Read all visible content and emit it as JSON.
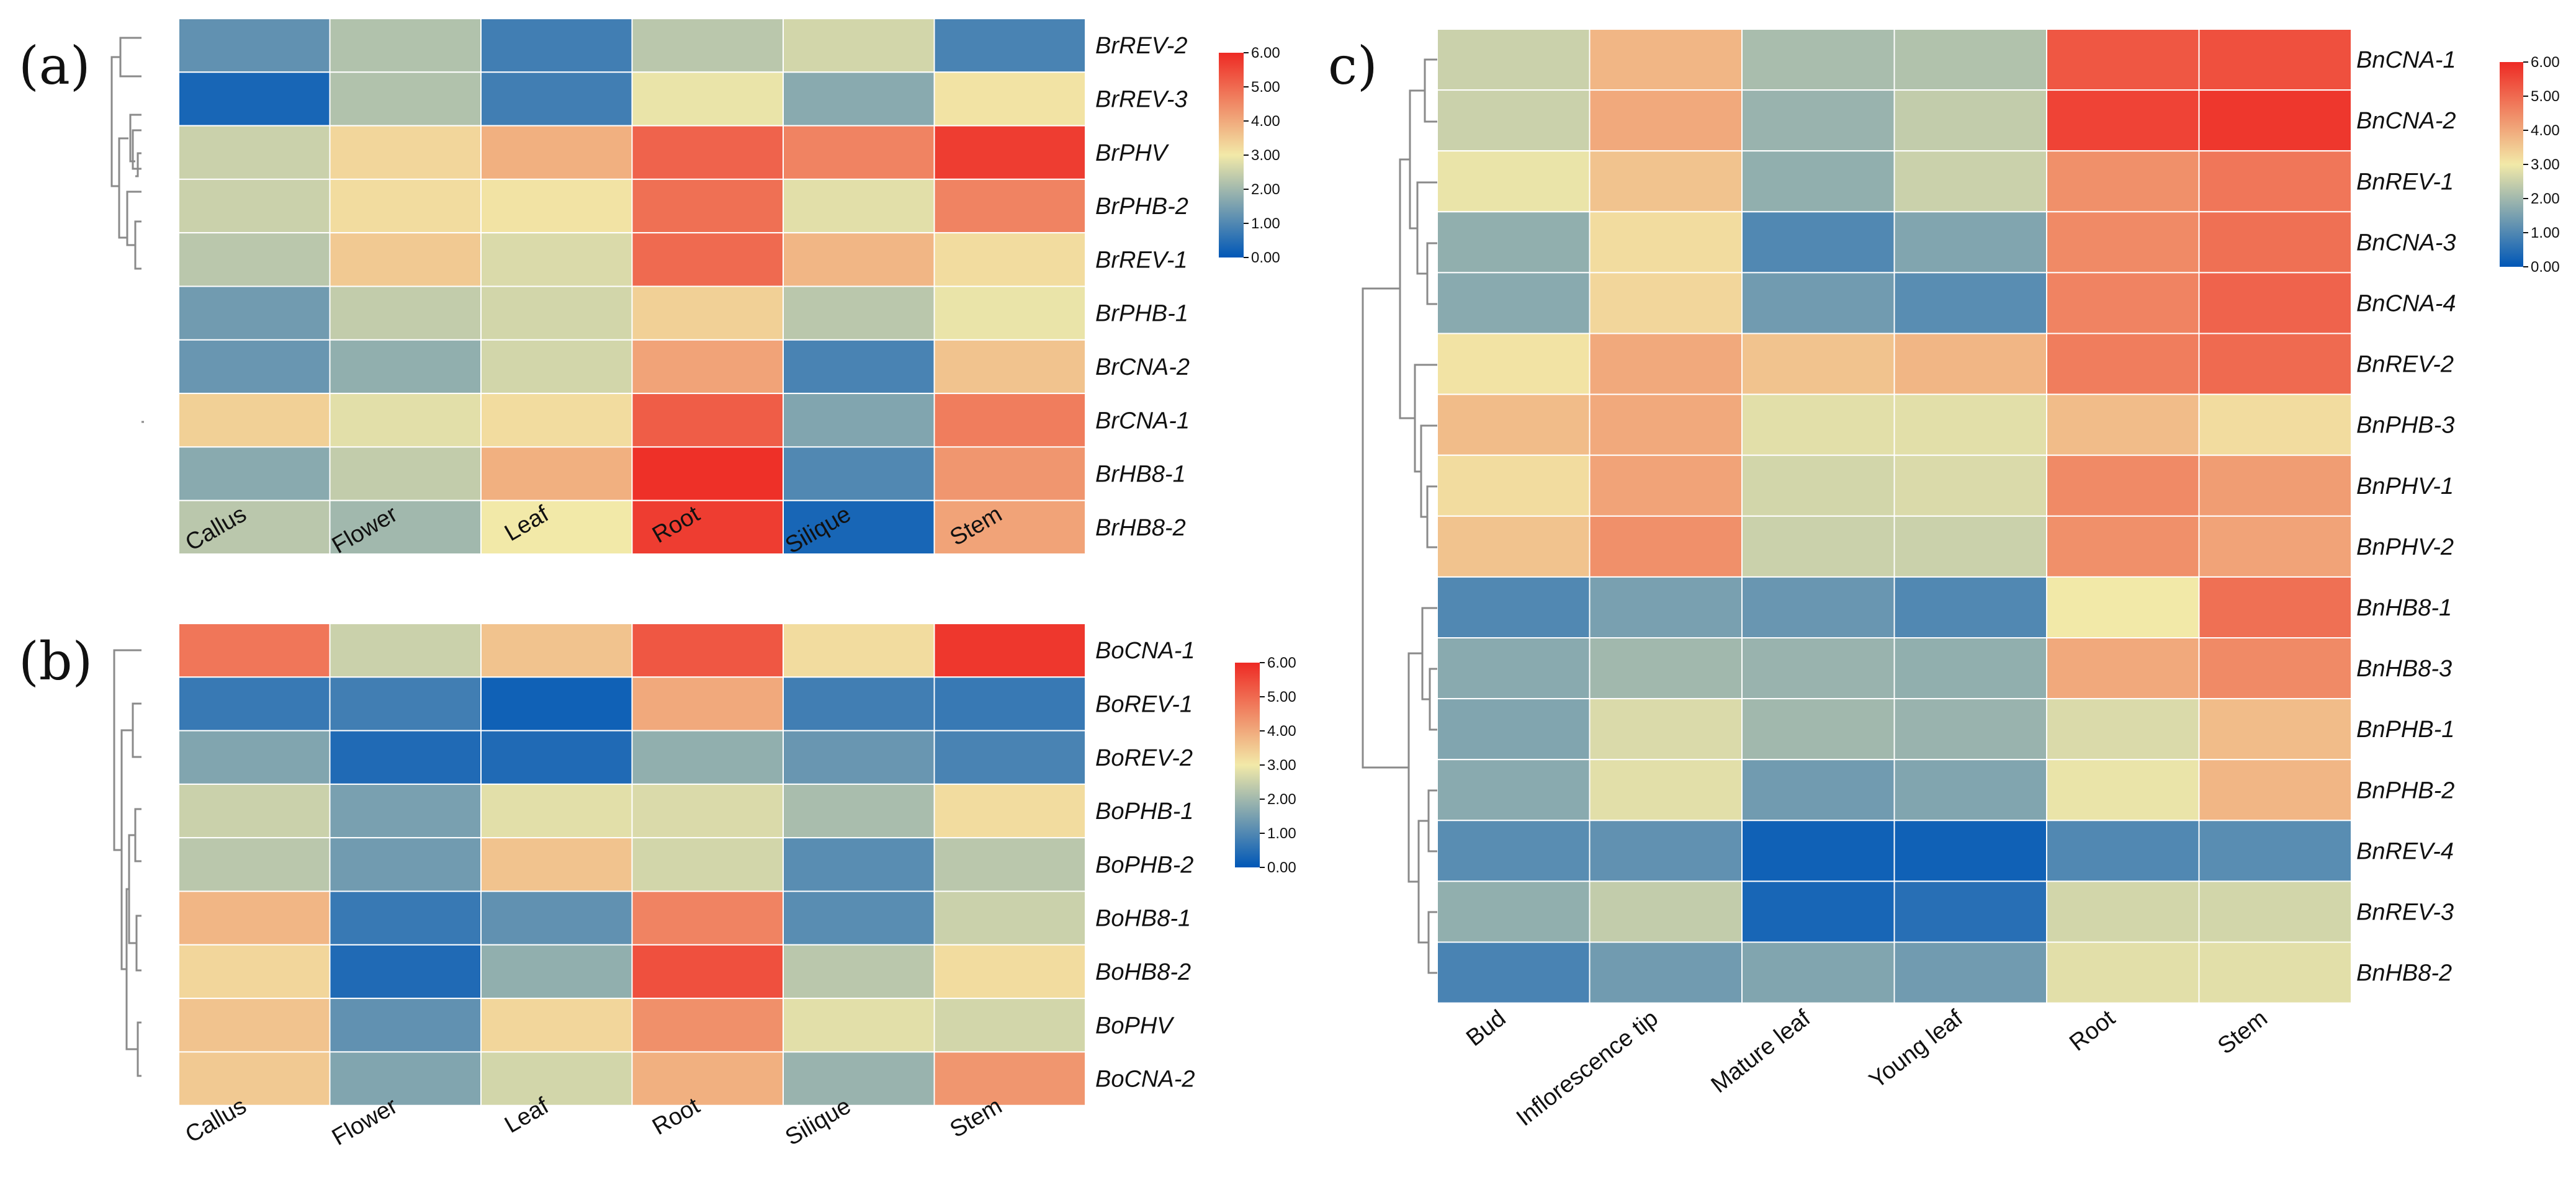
{
  "colors": {
    "low": "#0057b7",
    "mid": "#f2e9a8",
    "high": "#ee2a24",
    "grid": "#ffffff",
    "dendrogram": "#8a8a8a"
  },
  "chart_data": [
    {
      "type": "heatmap",
      "panel_label": "(a)",
      "title": "",
      "columns": [
        "Callus",
        "Flower",
        "Leaf",
        "Root",
        "Silique",
        "Stem"
      ],
      "rows": [
        "BrREV-2",
        "BrREV-3",
        "BrPHV",
        "BrPHB-2",
        "BrREV-1",
        "BrPHB-1",
        "BrCNA-2",
        "BrCNA-1",
        "BrHB8-1",
        "BrHB8-2"
      ],
      "values": [
        [
          1.2,
          2.2,
          0.8,
          2.3,
          2.6,
          0.9
        ],
        [
          0.3,
          2.2,
          0.8,
          2.9,
          1.7,
          3.1
        ],
        [
          2.5,
          3.3,
          3.9,
          5.1,
          4.6,
          5.7
        ],
        [
          2.5,
          3.2,
          3.1,
          4.9,
          2.8,
          4.6
        ],
        [
          2.3,
          3.5,
          2.7,
          5.0,
          3.8,
          3.2
        ],
        [
          1.4,
          2.4,
          2.6,
          3.4,
          2.3,
          2.9
        ],
        [
          1.3,
          1.8,
          2.6,
          4.1,
          0.9,
          3.6
        ],
        [
          3.4,
          2.8,
          3.2,
          5.2,
          1.6,
          4.7
        ],
        [
          1.7,
          2.4,
          3.9,
          5.9,
          1.0,
          4.3
        ],
        [
          2.3,
          2.0,
          3.0,
          5.7,
          0.3,
          4.1
        ]
      ],
      "legend": {
        "min": 0,
        "max": 6,
        "ticks": [
          "0.00",
          "1.00",
          "2.00",
          "3.00",
          "4.00",
          "5.00",
          "6.00"
        ]
      }
    },
    {
      "type": "heatmap",
      "panel_label": "(b)",
      "title": "",
      "columns": [
        "Callus",
        "Flower",
        "Leaf",
        "Root",
        "Silique",
        "Stem"
      ],
      "rows": [
        "BoCNA-1",
        "BoREV-1",
        "BoREV-2",
        "BoPHB-1",
        "BoPHB-2",
        "BoHB8-1",
        "BoHB8-2",
        "BoPHV",
        "BoCNA-2"
      ],
      "values": [
        [
          4.8,
          2.5,
          3.6,
          5.3,
          3.2,
          5.8
        ],
        [
          0.7,
          0.8,
          0.2,
          4.0,
          0.8,
          0.7
        ],
        [
          1.6,
          0.4,
          0.4,
          1.8,
          1.3,
          0.9
        ],
        [
          2.5,
          1.5,
          2.8,
          2.7,
          2.1,
          3.2
        ],
        [
          2.3,
          1.4,
          3.6,
          2.6,
          1.1,
          2.3
        ],
        [
          3.8,
          0.7,
          1.2,
          4.6,
          1.1,
          2.5
        ],
        [
          3.3,
          0.4,
          1.8,
          5.4,
          2.3,
          3.2
        ],
        [
          3.6,
          1.2,
          3.3,
          4.4,
          2.8,
          2.6
        ],
        [
          3.5,
          1.6,
          2.6,
          3.9,
          1.9,
          4.3
        ]
      ],
      "legend": {
        "min": 0,
        "max": 6,
        "ticks": [
          "0.00",
          "1.00",
          "2.00",
          "3.00",
          "4.00",
          "5.00",
          "6.00"
        ]
      }
    },
    {
      "type": "heatmap",
      "panel_label": "c)",
      "title": "",
      "columns": [
        "Bud",
        "Inflorescence tip",
        "Mature leaf",
        "Young leaf",
        "Root",
        "Stem"
      ],
      "rows": [
        "BnCNA-1",
        "BnCNA-2",
        "BnREV-1",
        "BnCNA-3",
        "BnCNA-4",
        "BnREV-2",
        "BnPHB-3",
        "BnPHV-1",
        "BnPHV-2",
        "BnHB8-1",
        "BnHB8-3",
        "BnPHB-1",
        "BnPHB-2",
        "BnREV-4",
        "BnREV-3",
        "BnHB8-2"
      ],
      "values": [
        [
          2.5,
          3.8,
          2.1,
          2.2,
          5.3,
          5.4
        ],
        [
          2.5,
          4.0,
          1.9,
          2.4,
          5.6,
          5.8
        ],
        [
          2.9,
          3.6,
          1.8,
          2.5,
          4.4,
          4.8
        ],
        [
          1.8,
          3.2,
          1.0,
          1.6,
          4.5,
          4.9
        ],
        [
          1.7,
          3.3,
          1.4,
          1.1,
          4.6,
          5.1
        ],
        [
          3.1,
          4.0,
          3.6,
          3.8,
          4.7,
          5.0
        ],
        [
          3.7,
          4.0,
          2.8,
          2.8,
          3.7,
          3.2
        ],
        [
          3.2,
          4.1,
          2.6,
          2.7,
          4.5,
          4.2
        ],
        [
          3.6,
          4.4,
          2.5,
          2.5,
          4.4,
          4.1
        ],
        [
          1.0,
          1.5,
          1.3,
          1.0,
          3.0,
          4.9
        ],
        [
          1.7,
          2.0,
          1.9,
          1.8,
          4.0,
          4.5
        ],
        [
          1.6,
          2.7,
          2.0,
          1.9,
          2.7,
          3.7
        ],
        [
          1.7,
          2.8,
          1.4,
          1.6,
          2.9,
          3.8
        ],
        [
          1.1,
          1.2,
          0.2,
          0.2,
          1.0,
          1.1
        ],
        [
          1.8,
          2.4,
          0.3,
          0.5,
          2.6,
          2.6
        ],
        [
          0.9,
          1.4,
          1.6,
          1.4,
          2.8,
          2.8
        ]
      ],
      "legend": {
        "min": 0,
        "max": 6,
        "ticks": [
          "0.00",
          "1.00",
          "2.00",
          "3.00",
          "4.00",
          "5.00",
          "6.00"
        ]
      }
    }
  ]
}
